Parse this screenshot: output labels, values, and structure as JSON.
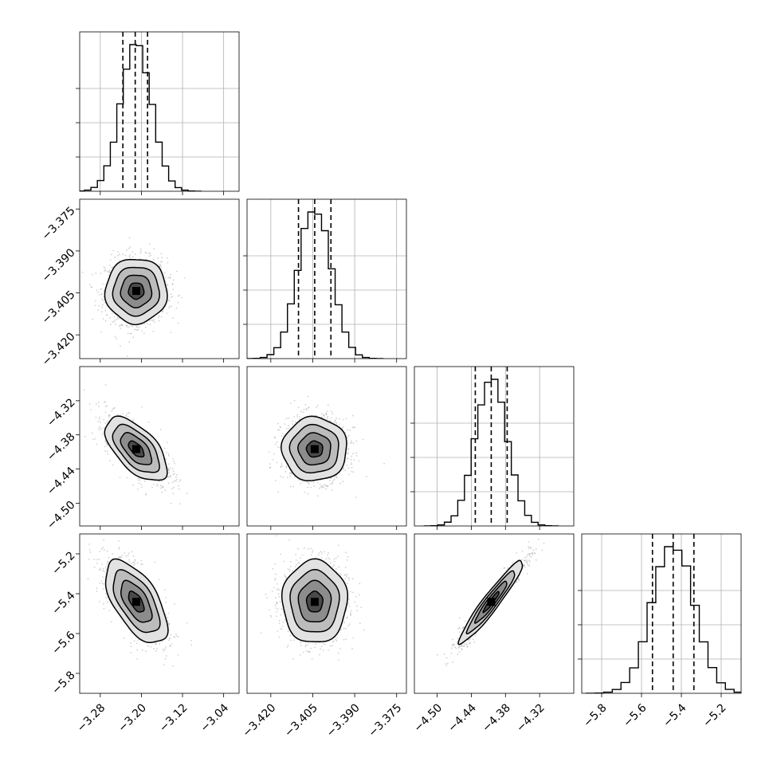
{
  "chart_data": {
    "type": "corner",
    "parameters": 4,
    "grid": true,
    "colors": {
      "line": "#000000",
      "grid": "#b0b0b0",
      "scatter": "#9a9a9a"
    },
    "axes": [
      {
        "range": [
          -3.32,
          -3.01
        ],
        "ticks": [
          -3.28,
          -3.2,
          -3.12,
          -3.04
        ],
        "tick_labels": [
          "−3.28",
          "−3.20",
          "−3.12",
          "−3.04"
        ],
        "mean": -3.21,
        "sd": 0.03,
        "quantiles": [
          -3.236,
          -3.212,
          -3.188
        ]
      },
      {
        "range": [
          -3.4285,
          -3.3715
        ],
        "ticks": [
          -3.42,
          -3.405,
          -3.39,
          -3.375
        ],
        "tick_labels": [
          "−3.420",
          "−3.405",
          "−3.390",
          "−3.375"
        ],
        "mean": -3.4043,
        "sd": 0.0058,
        "quantiles": [
          -3.4101,
          -3.4043,
          -3.3985
        ]
      },
      {
        "range": [
          -4.54,
          -4.26
        ],
        "ticks": [
          -4.5,
          -4.44,
          -4.38,
          -4.32
        ],
        "tick_labels": [
          "−4.50",
          "−4.44",
          "−4.38",
          "−4.32"
        ],
        "mean": -4.405,
        "sd": 0.028,
        "quantiles": [
          -4.433,
          -4.405,
          -4.377
        ]
      },
      {
        "range": [
          -5.9,
          -5.1
        ],
        "ticks": [
          -5.8,
          -5.6,
          -5.4,
          -5.2
        ],
        "tick_labels": [
          "−5.8",
          "−5.6",
          "−5.4",
          "−5.2"
        ],
        "mean": -5.441,
        "sd": 0.104,
        "quantiles": [
          -5.545,
          -5.441,
          -5.337
        ]
      }
    ],
    "correlations": [
      [
        1.0,
        0.0,
        -0.6,
        -0.6
      ],
      [
        0.0,
        1.0,
        0.0,
        0.0
      ],
      [
        -0.6,
        0.0,
        1.0,
        0.95
      ],
      [
        -0.6,
        0.0,
        0.95,
        1.0
      ]
    ],
    "contour_levels_sigma": [
      0.5,
      1.0,
      1.5,
      2.0
    ]
  }
}
